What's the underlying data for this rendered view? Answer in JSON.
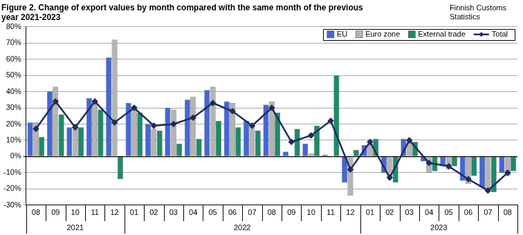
{
  "chart_data": {
    "type": "bar",
    "title": [
      "Figure 2. Change of export values by month compared with the same month of the previous",
      "year 2021-2023"
    ],
    "subtitle": [
      "Finnish Customs",
      "Statistics"
    ],
    "categories": [
      "08",
      "09",
      "10",
      "11",
      "12",
      "01",
      "02",
      "03",
      "04",
      "05",
      "06",
      "07",
      "08",
      "09",
      "10",
      "11",
      "12",
      "01",
      "02",
      "03",
      "04",
      "05",
      "06",
      "07",
      "08"
    ],
    "category_groups": [
      {
        "label": "2021",
        "size": 5
      },
      {
        "label": "2022",
        "size": 12
      },
      {
        "label": "2023",
        "size": 8
      }
    ],
    "series": [
      {
        "name": "EU",
        "type": "bar",
        "color": "#4467d6",
        "values": [
          21,
          40,
          18,
          36,
          61,
          33,
          20,
          30,
          35,
          41,
          34,
          22,
          32,
          3,
          8,
          1,
          -16,
          7,
          -10,
          11,
          -3,
          -6,
          -15,
          -19,
          -10
        ]
      },
      {
        "name": "Euro zone",
        "type": "bar",
        "color": "#b4b4b4",
        "values": [
          21,
          43,
          20,
          34,
          72,
          31,
          17,
          29,
          37,
          43,
          33,
          20,
          34,
          0,
          2,
          0,
          -24,
          8,
          -12,
          10,
          -10,
          -8,
          -17,
          -21,
          -12
        ]
      },
      {
        "name": "External trade",
        "type": "bar",
        "color": "#1e8a6a",
        "values": [
          12,
          26,
          18,
          29,
          -14,
          27,
          16,
          8,
          11,
          22,
          18,
          16,
          27,
          17,
          19,
          50,
          4,
          11,
          -16,
          9,
          -9,
          -6,
          -12,
          -22,
          -9
        ]
      },
      {
        "name": "Total",
        "type": "line",
        "color": "#1f2d5a",
        "marker": "diamond",
        "values": [
          17,
          34,
          18,
          34,
          21,
          30,
          19,
          20,
          24,
          33,
          28,
          19,
          30,
          9,
          13,
          22,
          -8,
          9,
          -13,
          10,
          -4,
          -6,
          -14,
          -21,
          -10
        ]
      }
    ],
    "ylim": [
      -30,
      80
    ],
    "yticks": [
      {
        "value": -30,
        "label": "-30%"
      },
      {
        "value": -20,
        "label": "-20%"
      },
      {
        "value": -10,
        "label": "-10%"
      },
      {
        "value": 0,
        "label": "0%"
      },
      {
        "value": 10,
        "label": "10%"
      },
      {
        "value": 20,
        "label": "20%"
      },
      {
        "value": 30,
        "label": "30%"
      },
      {
        "value": 40,
        "label": "40%"
      },
      {
        "value": 50,
        "label": "50%"
      },
      {
        "value": 60,
        "label": "60%"
      },
      {
        "value": 70,
        "label": "70%"
      },
      {
        "value": 80,
        "label": "80%"
      }
    ],
    "grid": true,
    "legend": "top right"
  }
}
